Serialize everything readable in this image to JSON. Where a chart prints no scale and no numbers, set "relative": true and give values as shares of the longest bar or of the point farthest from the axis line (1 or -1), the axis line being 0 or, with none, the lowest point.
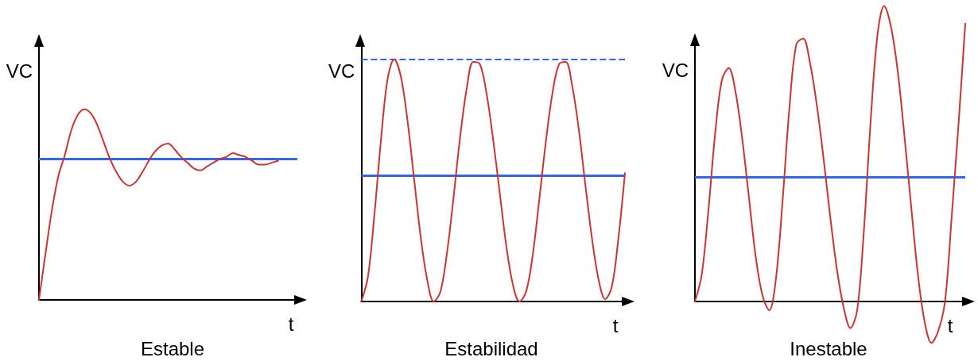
{
  "chart_data": [
    {
      "type": "line",
      "title": "Estable",
      "xlabel": "t",
      "ylabel": "VC",
      "relative": true,
      "categories": [
        null,
        null,
        null,
        null,
        null,
        null,
        null,
        null,
        null,
        null,
        null,
        null,
        null,
        null,
        null,
        null,
        null,
        null,
        null,
        null,
        null,
        null,
        null,
        null,
        null,
        null,
        null,
        null,
        null,
        null,
        null,
        null,
        null,
        null,
        null,
        null,
        null,
        null,
        null,
        null,
        null
      ],
      "series": [
        {
          "color": "#cc3333",
          "values": [
            0,
            0.24,
            0.47,
            0.65,
            0.76,
            0.89,
            0.97,
            1,
            0.98,
            0.92,
            0.83,
            0.74,
            0.67,
            0.62,
            0.6,
            0.62,
            0.67,
            0.73,
            0.78,
            0.81,
            0.82,
            0.79,
            0.75,
            0.72,
            0.69,
            0.68,
            0.7,
            0.72,
            0.74,
            0.75,
            0.77,
            0.76,
            0.75,
            0.73,
            0.71,
            0.71,
            0.72,
            0.73,
            null,
            null,
            null
          ]
        }
      ],
      "ref_lines": [
        {
          "axis": "y",
          "value": 0.74,
          "color": "#3366ee"
        }
      ]
    },
    {
      "type": "line",
      "title": "Estabilidad",
      "xlabel": "t",
      "ylabel": "VC",
      "relative": true,
      "categories": [
        null,
        null,
        null,
        null,
        null,
        null,
        null,
        null,
        null,
        null,
        null,
        null,
        null,
        null,
        null,
        null,
        null,
        null,
        null,
        null,
        null,
        null,
        null,
        null,
        null,
        null,
        null,
        null,
        null,
        null,
        null,
        null,
        null,
        null,
        null,
        null,
        null,
        null,
        null,
        null,
        null
      ],
      "series": [
        {
          "color": "#cc3333",
          "values": [
            0,
            0.1,
            0.36,
            0.67,
            0.92,
            1,
            0.93,
            0.75,
            0.51,
            0.27,
            0.09,
            0,
            0.04,
            0.2,
            0.43,
            0.68,
            0.88,
            0.99,
            0.98,
            0.86,
            0.67,
            0.45,
            0.23,
            0.07,
            0,
            0.04,
            0.19,
            0.42,
            0.66,
            0.86,
            0.98,
            0.99,
            0.89,
            0.71,
            0.48,
            0.26,
            0.09,
            0.01,
            0.06,
            0.26,
            0.53
          ]
        }
      ],
      "ref_lines": [
        {
          "axis": "y",
          "value": 0.52,
          "color": "#3366ee"
        },
        {
          "axis": "y",
          "value": 1,
          "color": "#3366ee",
          "line_style": "dashed"
        }
      ]
    },
    {
      "type": "line",
      "title": "Inestable",
      "xlabel": "t",
      "ylabel": "VC",
      "relative": true,
      "categories": [
        null,
        null,
        null,
        null,
        null,
        null,
        null,
        null,
        null,
        null,
        null,
        null,
        null,
        null,
        null,
        null,
        null,
        null,
        null,
        null,
        null,
        null,
        null,
        null,
        null,
        null,
        null,
        null,
        null,
        null,
        null,
        null,
        null,
        null,
        null,
        null,
        null,
        null,
        null,
        null,
        null
      ],
      "series": [
        {
          "color": "#cc3333",
          "values": [
            0,
            0.09,
            0.31,
            0.57,
            0.75,
            0.79,
            0.71,
            0.55,
            0.35,
            0.15,
            0.02,
            -0.03,
            0.08,
            0.35,
            0.66,
            0.87,
            0.89,
            0.81,
            0.67,
            0.49,
            0.29,
            0.11,
            -0.02,
            -0.09,
            -0.03,
            0.24,
            0.61,
            0.9,
            1,
            0.93,
            0.78,
            0.56,
            0.32,
            0.09,
            -0.07,
            -0.14,
            -0.1,
            0,
            0.29,
            0.6,
            0.94
          ]
        }
      ],
      "ref_lines": [
        {
          "axis": "y",
          "value": 0.42,
          "color": "#3366ee"
        }
      ]
    }
  ]
}
